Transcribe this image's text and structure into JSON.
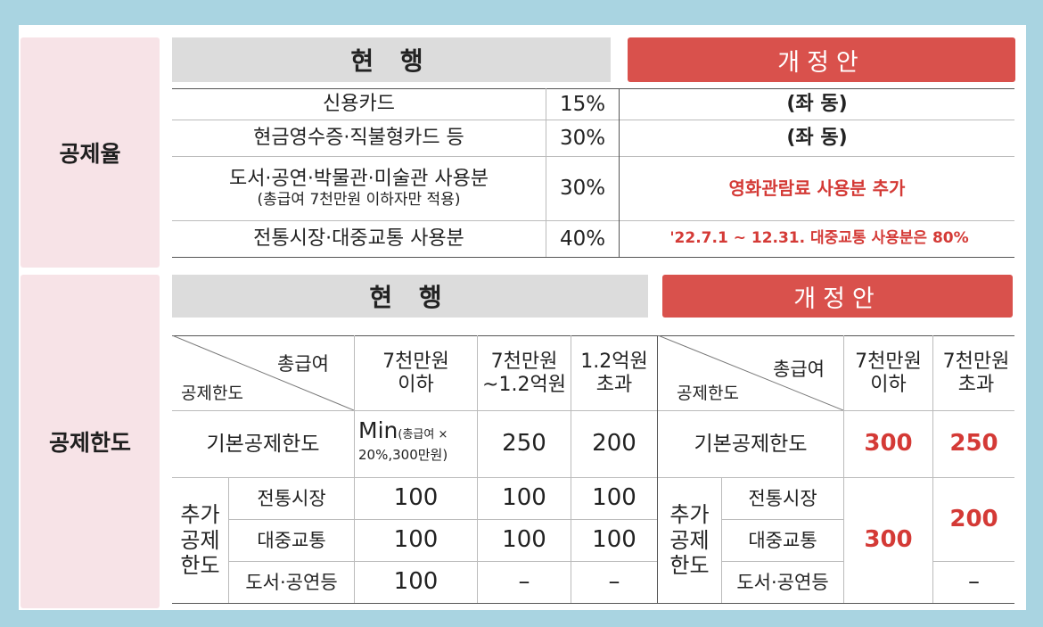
{
  "sections": {
    "rate_label": "공제율",
    "limit_label": "공제한도"
  },
  "rate_table": {
    "current_header": "현 행",
    "revised_header": "개정안",
    "rows": [
      {
        "item": "신용카드",
        "rate": "15%",
        "revised": "(좌 동)"
      },
      {
        "item": "현금영수증·직불형카드 등",
        "rate": "30%",
        "revised": "(좌 동)"
      },
      {
        "item": "도서·공연·박물관·미술관 사용분",
        "item_note": "(총급여 7천만원 이하자만 적용)",
        "rate": "30%",
        "revised": "영화관람료 사용분 추가"
      },
      {
        "item": "전통시장·대중교통 사용분",
        "rate": "40%",
        "revised": "'22.7.1 ~ 12.31. 대중교통 사용분은 80%"
      }
    ]
  },
  "limit_table": {
    "current_header": "현 행",
    "revised_header": "개정안",
    "corner_top": "총급여",
    "corner_bottom": "공제한도",
    "current_cols": [
      "7천만원\n이하",
      "7천만원\n~1.2억원",
      "1.2억원\n초과"
    ],
    "revised_cols": [
      "7천만원\n이하",
      "7천만원\n초과"
    ],
    "basic_label": "기본공제한도",
    "basic_current": {
      "col1_main": "Min",
      "col1_small_a": "(총급여 ×",
      "col1_small_b": "20%,300만원)",
      "col2": "250",
      "col3": "200"
    },
    "basic_revised": [
      "300",
      "250"
    ],
    "additional_label": "추가\n공제\n한도",
    "additional_items": [
      "전통시장",
      "대중교통",
      "도서·공연등"
    ],
    "additional_current": [
      [
        "100",
        "100",
        "100"
      ],
      [
        "100",
        "100",
        "100"
      ],
      [
        "100",
        "–",
        "–"
      ]
    ],
    "additional_revised": {
      "col1_merged": "300",
      "col2_merged": "200",
      "col2_last": "–"
    }
  }
}
